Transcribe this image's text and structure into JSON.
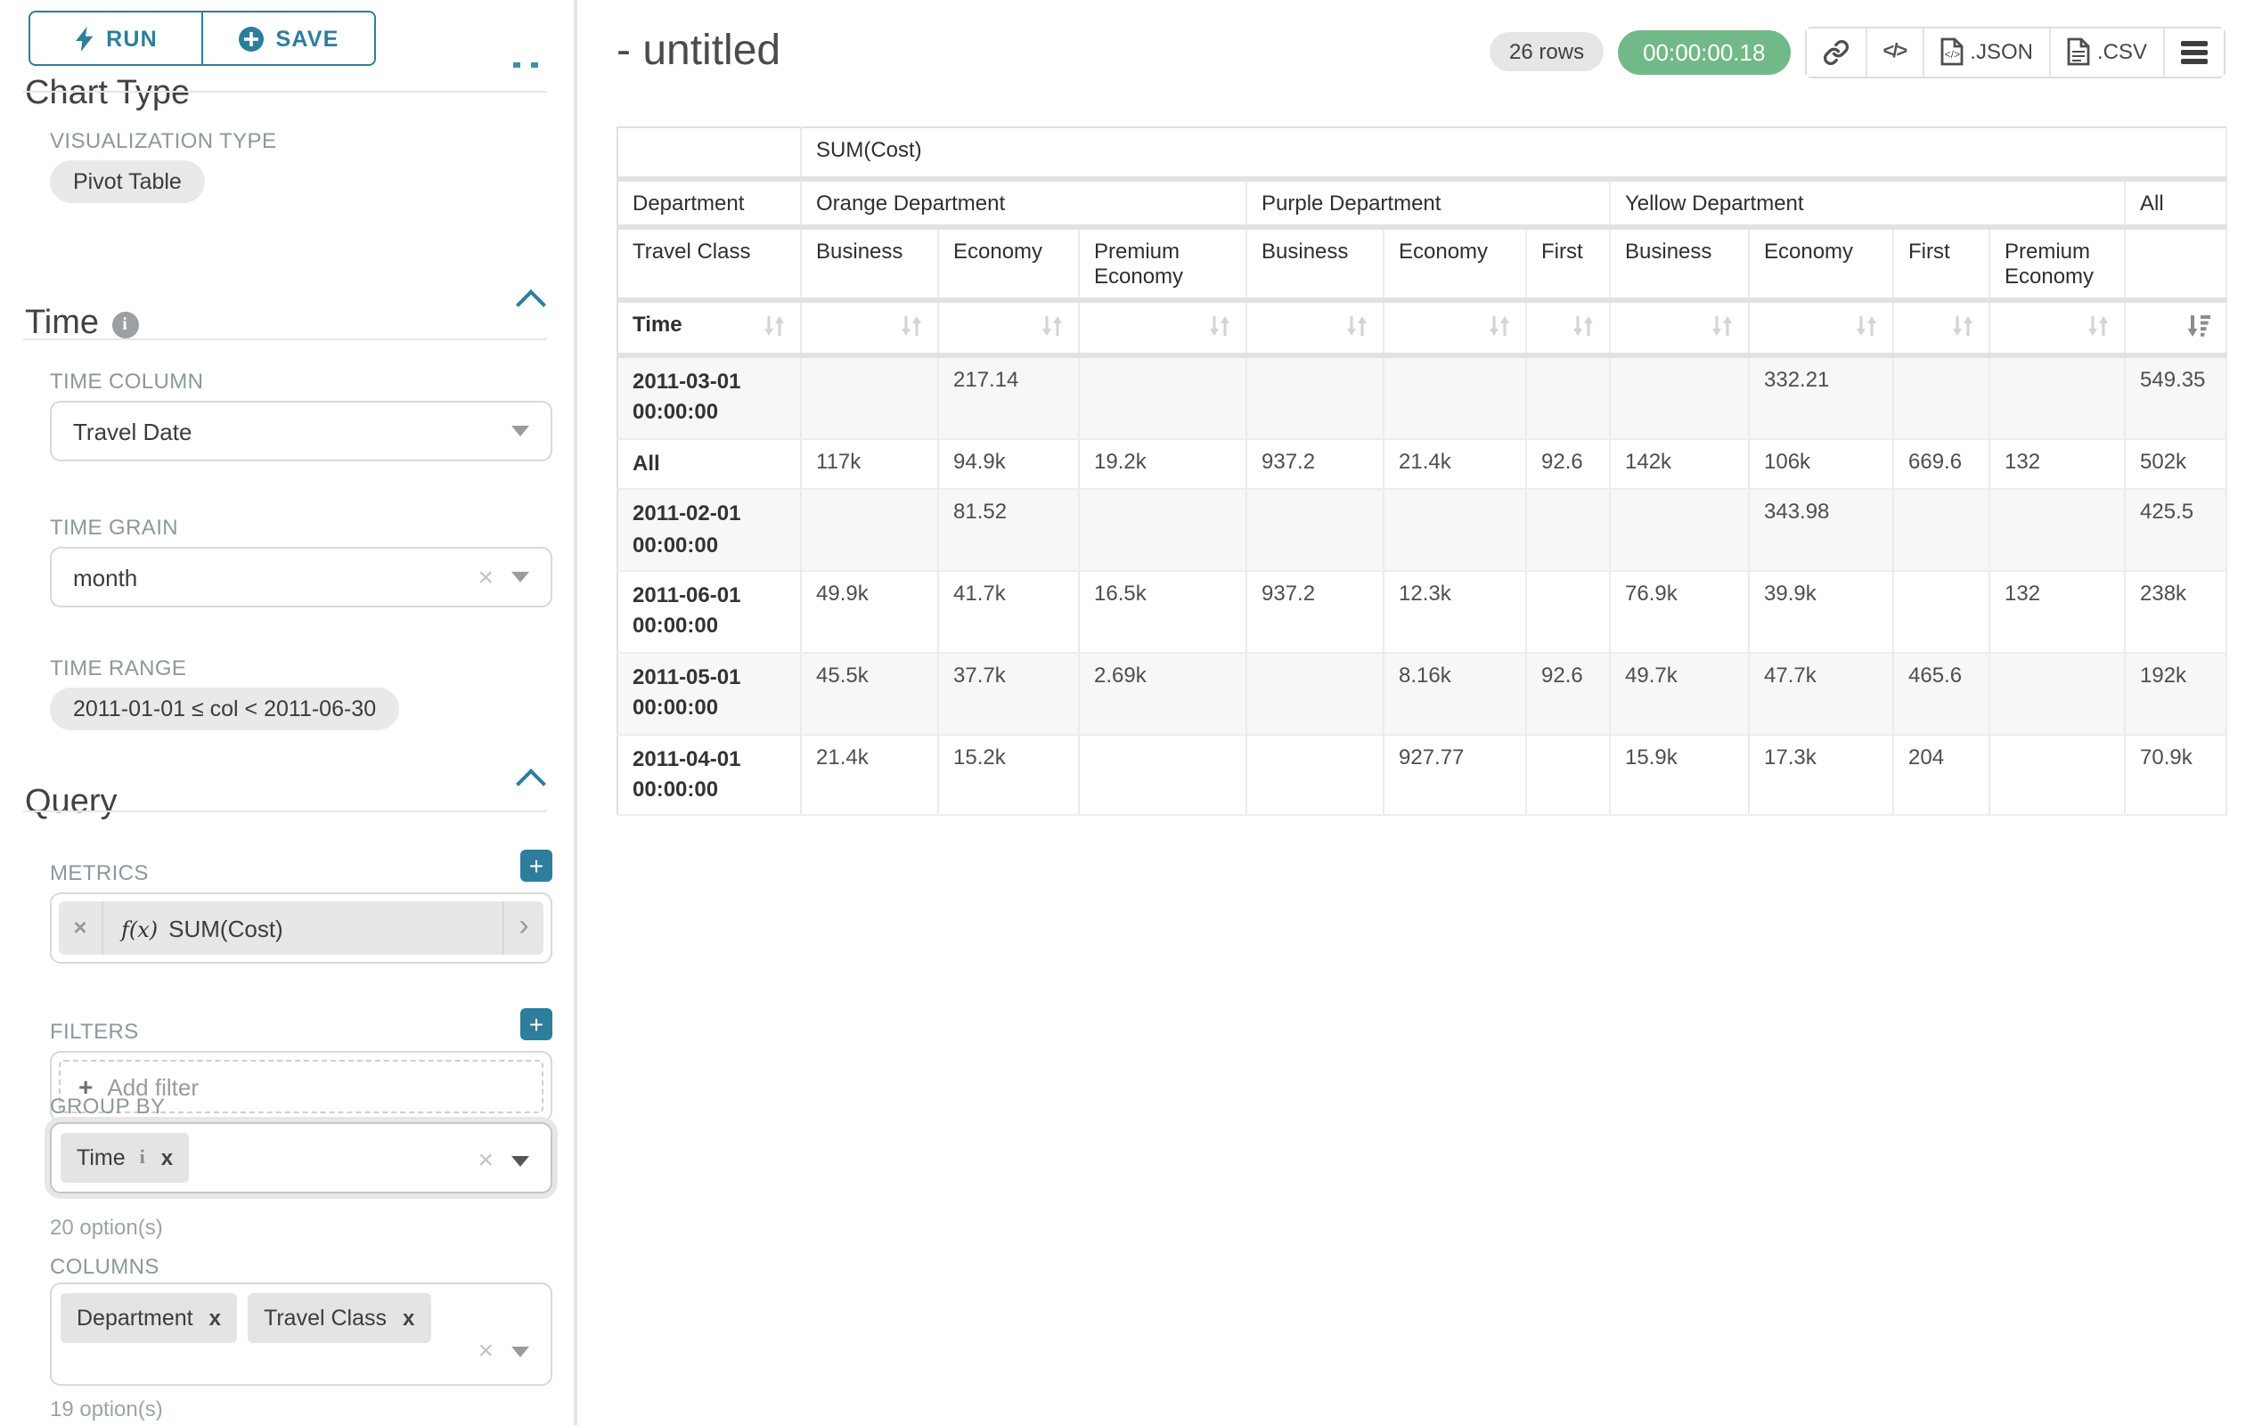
{
  "accent_color": "#2d7e9d",
  "timer_color": "#72b98a",
  "toolbar": {
    "run_label": "RUN",
    "save_label": "SAVE"
  },
  "icons": {
    "plus": "+",
    "clear": "×",
    "tag_close": "x",
    "info": "i",
    "code_glyph": "</>",
    "metric_chevron": "›"
  },
  "sidebar": {
    "chart_type_heading": "Chart Type",
    "viz_type_label": "VISUALIZATION TYPE",
    "viz_type_value": "Pivot Table",
    "time_section_title": "Time",
    "time_column_label": "TIME COLUMN",
    "time_column_value": "Travel Date",
    "time_grain_label": "TIME GRAIN",
    "time_grain_value": "month",
    "time_range_label": "TIME RANGE",
    "time_range_value": "2011-01-01 ≤ col < 2011-06-30",
    "query_section_title": "Query",
    "metrics_label": "METRICS",
    "metric_fx": "f(x)",
    "metric_value": "SUM(Cost)",
    "filters_label": "FILTERS",
    "add_filter_label": "Add filter",
    "group_by_label": "GROUP BY",
    "group_by_tags": [
      "Time"
    ],
    "group_by_caption": "20 option(s)",
    "columns_label": "COLUMNS",
    "columns_tags": [
      "Department",
      "Travel Class"
    ],
    "columns_caption": "19 option(s)"
  },
  "header": {
    "title": "- untitled",
    "row_count": "26 rows",
    "timer": "00:00:00.18",
    "export_json_label": ".JSON",
    "export_csv_label": ".CSV"
  },
  "table": {
    "metric_header": "SUM(Cost)",
    "dept_row_label": "Department",
    "class_row_label": "Travel Class",
    "time_row_label": "Time",
    "groups": [
      {
        "name": "Orange Department",
        "classes": [
          "Business",
          "Economy",
          "Premium Economy"
        ]
      },
      {
        "name": "Purple Department",
        "classes": [
          "Business",
          "Economy",
          "First"
        ]
      },
      {
        "name": "Yellow Department",
        "classes": [
          "Business",
          "Economy",
          "First",
          "Premium Economy"
        ]
      },
      {
        "name": "All",
        "classes": [
          ""
        ]
      }
    ],
    "sorted_column_index": 10,
    "rows": [
      {
        "time": "2011-03-01 00:00:00",
        "values": [
          "",
          "217.14",
          "",
          "",
          "",
          "",
          "",
          "332.21",
          "",
          "",
          "549.35"
        ]
      },
      {
        "time": "All",
        "values": [
          "117k",
          "94.9k",
          "19.2k",
          "937.2",
          "21.4k",
          "92.6",
          "142k",
          "106k",
          "669.6",
          "132",
          "502k"
        ]
      },
      {
        "time": "2011-02-01 00:00:00",
        "values": [
          "",
          "81.52",
          "",
          "",
          "",
          "",
          "",
          "343.98",
          "",
          "",
          "425.5"
        ]
      },
      {
        "time": "2011-06-01 00:00:00",
        "values": [
          "49.9k",
          "41.7k",
          "16.5k",
          "937.2",
          "12.3k",
          "",
          "76.9k",
          "39.9k",
          "",
          "132",
          "238k"
        ]
      },
      {
        "time": "2011-05-01 00:00:00",
        "values": [
          "45.5k",
          "37.7k",
          "2.69k",
          "",
          "8.16k",
          "92.6",
          "49.7k",
          "47.7k",
          "465.6",
          "",
          "192k"
        ]
      },
      {
        "time": "2011-04-01 00:00:00",
        "values": [
          "21.4k",
          "15.2k",
          "",
          "",
          "927.77",
          "",
          "15.9k",
          "17.3k",
          "204",
          "",
          "70.9k"
        ]
      }
    ]
  }
}
